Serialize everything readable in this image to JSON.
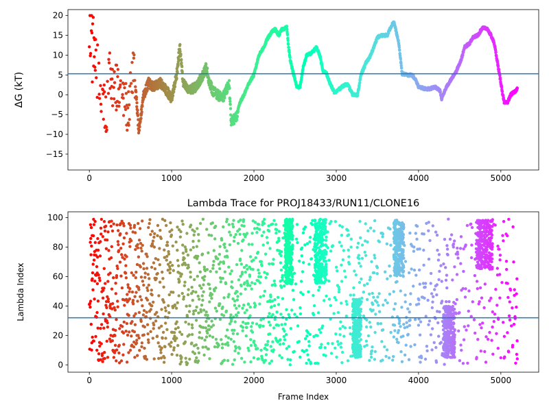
{
  "chart_data": [
    {
      "type": "scatter",
      "title": "",
      "xlabel": "",
      "ylabel": "ΔG (kT)",
      "xlim": [
        -260,
        5460
      ],
      "ylim": [
        -19,
        21.5
      ],
      "xticks": [
        0,
        1000,
        2000,
        3000,
        4000,
        5000
      ],
      "yticks": [
        -15,
        -10,
        -5,
        0,
        5,
        10,
        15,
        20
      ],
      "hline": 5.3,
      "hline_color": "#1f77b4",
      "colormap": "rainbow",
      "n_frames": 5200,
      "trace_profile": {
        "frames": [
          0,
          30,
          60,
          100,
          140,
          180,
          220,
          260,
          300,
          360,
          420,
          480,
          540,
          600,
          660,
          720,
          780,
          860,
          940,
          1000,
          1060,
          1100,
          1140,
          1200,
          1300,
          1380,
          1420,
          1460,
          1500,
          1560,
          1620,
          1700,
          1720,
          1780,
          1830,
          1880,
          1940,
          2000,
          2060,
          2120,
          2160,
          2220,
          2260,
          2300,
          2340,
          2400,
          2420,
          2440,
          2480,
          2520,
          2560,
          2600,
          2640,
          2700,
          2760,
          2800,
          2840,
          2880,
          2920,
          2980,
          3040,
          3100,
          3140,
          3200,
          3260,
          3300,
          3360,
          3420,
          3500,
          3560,
          3620,
          3660,
          3700,
          3760,
          3800,
          3860,
          3920,
          3960,
          4000,
          4080,
          4140,
          4200,
          4260,
          4280,
          4340,
          4400,
          4460,
          4520,
          4560,
          4620,
          4660,
          4720,
          4780,
          4840,
          4880,
          4920,
          4960,
          5000,
          5040,
          5080,
          5120,
          5180,
          5200
        ],
        "values": [
          20,
          12,
          10,
          6,
          2,
          0,
          -2,
          5,
          1,
          3,
          -2,
          -4,
          8,
          -9,
          0,
          3,
          2,
          3,
          1,
          -1,
          5,
          12,
          3,
          1,
          2,
          5,
          7,
          3,
          1,
          0,
          -1,
          3,
          -6.5,
          -6,
          -2,
          0,
          3,
          5,
          10,
          12,
          14,
          16,
          16.5,
          15,
          16.5,
          17,
          12,
          9,
          5.3,
          2,
          2,
          7,
          10,
          10.5,
          12,
          10,
          6,
          5.5,
          3,
          0.5,
          1.5,
          2.5,
          2.5,
          0,
          0,
          5,
          8,
          10,
          14.5,
          15,
          15,
          17,
          18.5,
          13,
          5.3,
          5,
          5,
          4,
          2,
          1.5,
          1.5,
          2,
          1,
          -1,
          2,
          4,
          6,
          9,
          12,
          13,
          14.5,
          15,
          17,
          16.5,
          15,
          13,
          8,
          3,
          -2,
          -2,
          0,
          1,
          1.5
        ]
      }
    },
    {
      "type": "scatter",
      "title": "Lambda Trace for PROJ18433/RUN11/CLONE16",
      "xlabel": "Frame Index",
      "ylabel": "Lambda Index",
      "xlim": [
        -260,
        5460
      ],
      "ylim": [
        -5,
        104
      ],
      "xticks": [
        0,
        1000,
        2000,
        3000,
        4000,
        5000
      ],
      "yticks": [
        0,
        20,
        40,
        60,
        80,
        100
      ],
      "hline": 32,
      "hline_color": "#1f77b4",
      "colormap": "rainbow",
      "n_frames": 5200,
      "lambda_range": [
        0,
        99
      ],
      "dense_regions": [
        {
          "x": [
            2380,
            2470
          ],
          "y": [
            55,
            99
          ]
        },
        {
          "x": [
            2740,
            2880
          ],
          "y": [
            55,
            99
          ]
        },
        {
          "x": [
            3200,
            3300
          ],
          "y": [
            5,
            45
          ]
        },
        {
          "x": [
            3700,
            3820
          ],
          "y": [
            60,
            99
          ]
        },
        {
          "x": [
            4300,
            4440
          ],
          "y": [
            5,
            40
          ]
        },
        {
          "x": [
            4700,
            4900
          ],
          "y": [
            65,
            99
          ]
        }
      ]
    }
  ]
}
